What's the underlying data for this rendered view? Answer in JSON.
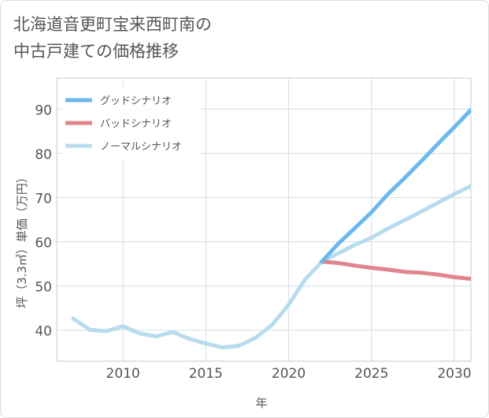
{
  "title_line1": "北海道音更町宝来西町南の",
  "title_line2": "中古戸建ての価格推移",
  "chart_data": {
    "type": "line",
    "xlabel": "年",
    "ylabel": "坪（3.3㎡）単価（万円）",
    "xlim": [
      2006,
      2031
    ],
    "ylim": [
      33,
      97
    ],
    "x_ticks": [
      2010,
      2015,
      2020,
      2025,
      2030
    ],
    "y_ticks": [
      40,
      50,
      60,
      70,
      80,
      90
    ],
    "grid": true,
    "legend_position": "top-left",
    "series": [
      {
        "name": "グッドシナリオ",
        "color": "#6bb8ec",
        "x": [
          2022,
          2023,
          2024,
          2025,
          2026,
          2027,
          2028,
          2029,
          2030,
          2031
        ],
        "y": [
          55.5,
          59.6,
          63.1,
          66.7,
          70.8,
          74.4,
          78.2,
          82.1,
          85.9,
          89.8
        ]
      },
      {
        "name": "バッドシナリオ",
        "color": "#e0848e",
        "x": [
          2022,
          2023,
          2024,
          2025,
          2026,
          2027,
          2028,
          2029,
          2030,
          2031
        ],
        "y": [
          55.5,
          55.2,
          54.6,
          54.1,
          53.7,
          53.2,
          53.0,
          52.6,
          52.0,
          51.6
        ]
      },
      {
        "name": "ノーマルシナリオ",
        "color": "#b7dced",
        "x": [
          2007,
          2008,
          2009,
          2010,
          2011,
          2012,
          2013,
          2014,
          2015,
          2016,
          2017,
          2018,
          2019,
          2020,
          2021,
          2022,
          2023,
          2024,
          2025,
          2026,
          2027,
          2028,
          2029,
          2030,
          2031
        ],
        "y": [
          42.6,
          40.1,
          39.8,
          40.9,
          39.3,
          38.6,
          39.6,
          38.1,
          37.0,
          36.1,
          36.5,
          38.3,
          41.2,
          45.8,
          51.5,
          55.5,
          57.4,
          59.3,
          60.9,
          63.0,
          64.9,
          66.8,
          68.8,
          70.8,
          72.6
        ]
      }
    ]
  }
}
